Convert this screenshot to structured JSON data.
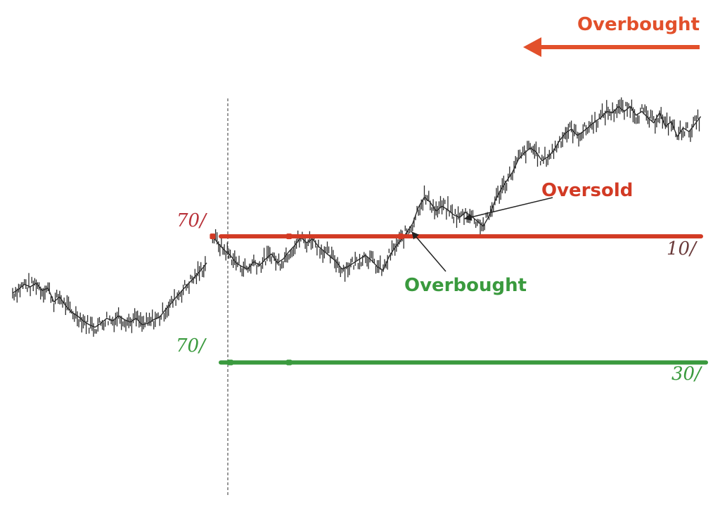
{
  "colors": {
    "price": "#2b2b2b",
    "upper_line": "#d23a24",
    "lower_line": "#3a9a3e",
    "upper_label": "#b8323a",
    "lower_label": "#3a9a3e",
    "arrow_text": "#e2502b",
    "divider": "#555555"
  },
  "labels": {
    "overbought_top": "Overbought",
    "oversold": "Oversold",
    "overbought_mid": "Overbought",
    "upper_left": "70/",
    "upper_right": "10/",
    "lower_left": "70/",
    "lower_right": "30/"
  },
  "chart_data": {
    "type": "line",
    "title": "",
    "xlabel": "",
    "ylabel": "",
    "series": [
      {
        "values": [
          55,
          58,
          62,
          60,
          63,
          57,
          59,
          48,
          52,
          45,
          40,
          37,
          33,
          30,
          28,
          31,
          35,
          33,
          37,
          34,
          32,
          35,
          30,
          31,
          34,
          36,
          42,
          47,
          53,
          58,
          63,
          68,
          73,
          79,
          100,
          94,
          89,
          85,
          79,
          76,
          74,
          80,
          77,
          82,
          86,
          79,
          82,
          88,
          93,
          99,
          95,
          98,
          92,
          88,
          84,
          80,
          74,
          76,
          79,
          82,
          85,
          81,
          76,
          73,
          84,
          91,
          97,
          103,
          110,
          123,
          131,
          127,
          120,
          124,
          121,
          117,
          115,
          119,
          116,
          112,
          108,
          116,
          128,
          137,
          144,
          151,
          161,
          166,
          170,
          167,
          160,
          163,
          168,
          176,
          182,
          185,
          180,
          183,
          187,
          191,
          194,
          199,
          198,
          203,
          199,
          203,
          196,
          199,
          194,
          190,
          198,
          187,
          191,
          179,
          186,
          183,
          189,
          195
        ]
      }
    ],
    "lines": [
      {
        "name": "70/",
        "y": 100,
        "color": "upper_line"
      },
      {
        "name": "70/",
        "y": 0,
        "color": "lower_line"
      }
    ],
    "markers": [
      {
        "line": 0,
        "index": 34
      },
      {
        "line": 0,
        "index": 47
      },
      {
        "line": 0,
        "index": 66
      },
      {
        "line": 1,
        "index": 37
      },
      {
        "line": 1,
        "index": 47
      }
    ],
    "annotations": [
      {
        "text_key": "overbought_top",
        "kind": "arrow-left"
      },
      {
        "text_key": "oversold",
        "kind": "pointer",
        "target_index": 66
      },
      {
        "text_key": "overbought_mid",
        "kind": "pointer",
        "target_index": 52
      }
    ],
    "xlim": [
      0,
      118
    ],
    "ylim": [
      -80,
      245
    ],
    "grid": false,
    "legend": "none"
  }
}
